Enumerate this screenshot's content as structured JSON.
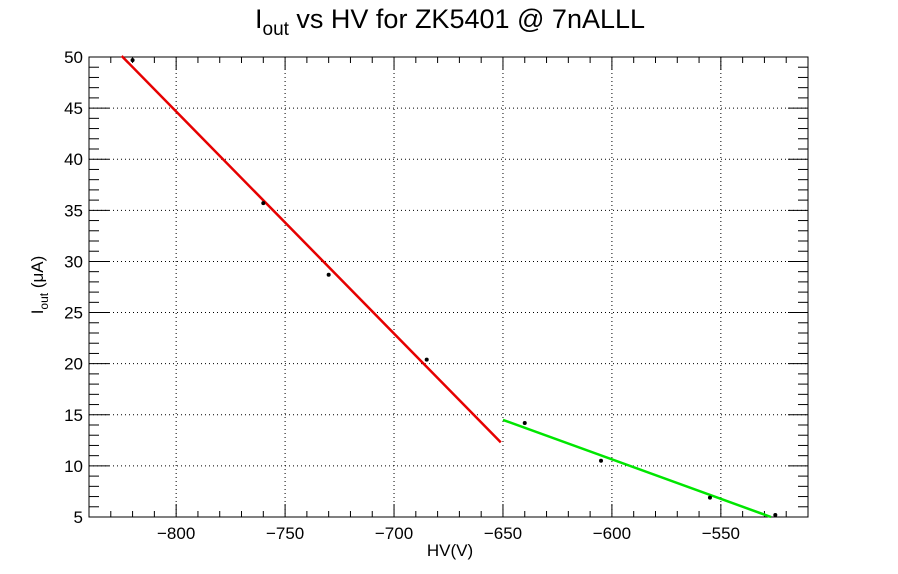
{
  "chart_data": {
    "type": "scatter",
    "title": {
      "main": "I",
      "sub": "out",
      "rest": " vs HV for ZK5401 @ 7nALLL"
    },
    "xlabel": "HV(V)",
    "ylabel": {
      "main": "I",
      "sub": "out",
      "rest": " (μA)"
    },
    "xlim": [
      -840,
      -510
    ],
    "ylim": [
      5,
      50
    ],
    "xticks": [
      -800,
      -750,
      -700,
      -650,
      -600,
      -550
    ],
    "yticks": [
      5,
      10,
      15,
      20,
      25,
      30,
      35,
      40,
      45,
      50
    ],
    "grid": true,
    "points": [
      {
        "x": -820,
        "y": 49.7
      },
      {
        "x": -760,
        "y": 35.7
      },
      {
        "x": -730,
        "y": 28.7
      },
      {
        "x": -685,
        "y": 20.4
      },
      {
        "x": -640,
        "y": 14.2
      },
      {
        "x": -605,
        "y": 10.5
      },
      {
        "x": -555,
        "y": 6.9
      },
      {
        "x": -525,
        "y": 5.2
      }
    ],
    "fits": [
      {
        "color": "#e60000",
        "x": [
          -825,
          -651
        ],
        "y": [
          50.1,
          12.3
        ]
      },
      {
        "color": "#00e600",
        "x": [
          -650,
          -527
        ],
        "y": [
          14.5,
          5.0
        ]
      }
    ]
  }
}
